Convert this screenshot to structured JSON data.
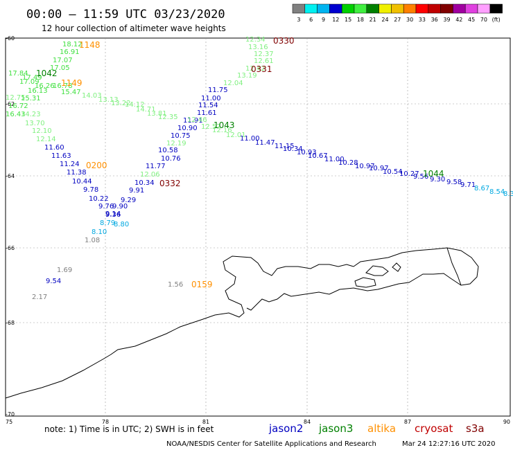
{
  "header": {
    "title": "00:00 – 11:59 UTC 03/23/2020",
    "subtitle": "12 hour collection of altimeter wave heights"
  },
  "legend": {
    "colors": [
      "#808080",
      "#00f0f0",
      "#00b4f0",
      "#0000d0",
      "#00d000",
      "#40f040",
      "#008000",
      "#f0f000",
      "#f0c000",
      "#ff8000",
      "#ff0000",
      "#c00000",
      "#800000",
      "#a000a0",
      "#e040e0",
      "#ffa0ff",
      "#000000"
    ],
    "labels": [
      "3",
      "6",
      "9",
      "12",
      "15",
      "18",
      "21",
      "24",
      "27",
      "30",
      "33",
      "36",
      "39",
      "42",
      "45",
      "70",
      "(ft)"
    ]
  },
  "axes": {
    "lon_ticks": [
      "75",
      "78",
      "81",
      "84",
      "87",
      "90"
    ],
    "lat_ticks": [
      "60",
      "62",
      "64",
      "66",
      "68",
      "70"
    ]
  },
  "points": [
    {
      "t": "18.12",
      "c": "#40e040"
    },
    {
      "t": "16.91",
      "c": "#40e040"
    },
    {
      "t": "17.07",
      "c": "#40e040"
    },
    {
      "t": "17.05",
      "c": "#40e040"
    },
    {
      "t": "17.84",
      "c": "#40e040"
    },
    {
      "t": "17.49",
      "c": "#40e040"
    },
    {
      "t": "17.09",
      "c": "#40e040"
    },
    {
      "t": "16.26",
      "c": "#40e040"
    },
    {
      "t": "16.78",
      "c": "#40e040"
    },
    {
      "t": "16.13",
      "c": "#40e040"
    },
    {
      "t": "15.47",
      "c": "#40e040"
    },
    {
      "t": "15.31",
      "c": "#40e040"
    },
    {
      "t": "14.03",
      "c": "#80f080"
    },
    {
      "t": "13.13",
      "c": "#80f080"
    },
    {
      "t": "12.75",
      "c": "#80f080"
    },
    {
      "t": "13.22",
      "c": "#80f080"
    },
    {
      "t": "16.72",
      "c": "#40e040"
    },
    {
      "t": "14.12",
      "c": "#80f080"
    },
    {
      "t": "14.71",
      "c": "#80f080"
    },
    {
      "t": "16.43",
      "c": "#40e040"
    },
    {
      "t": "14.23",
      "c": "#80f080"
    },
    {
      "t": "13.81",
      "c": "#80f080"
    },
    {
      "t": "12.35",
      "c": "#80f080"
    },
    {
      "t": "13.70",
      "c": "#80f080"
    },
    {
      "t": "12.10",
      "c": "#80f080"
    },
    {
      "t": "12.14",
      "c": "#80f080"
    },
    {
      "t": "11.60",
      "c": "#0000c0"
    },
    {
      "t": "11.63",
      "c": "#0000c0"
    },
    {
      "t": "11.24",
      "c": "#0000c0"
    },
    {
      "t": "11.38",
      "c": "#0000c0"
    },
    {
      "t": "10.44",
      "c": "#0000c0"
    },
    {
      "t": "9.78",
      "c": "#0000c0"
    },
    {
      "t": "10.22",
      "c": "#0000c0"
    },
    {
      "t": "9.76",
      "c": "#0000c0"
    },
    {
      "t": "9.90",
      "c": "#0000c0"
    },
    {
      "t": "9.29",
      "c": "#0000c0"
    },
    {
      "t": "9.91",
      "c": "#0000c0"
    },
    {
      "t": "10.34",
      "c": "#0000c0"
    },
    {
      "t": "9.36",
      "c": "#0000c0"
    },
    {
      "t": "9.14",
      "c": "#0000c0"
    },
    {
      "t": "8.79",
      "c": "#00a8e0"
    },
    {
      "t": "8.80",
      "c": "#00a8e0"
    },
    {
      "t": "8.10",
      "c": "#00a8e0"
    },
    {
      "t": "1.08",
      "c": "#808080"
    },
    {
      "t": "12.34",
      "c": "#80f080"
    },
    {
      "t": "13.16",
      "c": "#80f080"
    },
    {
      "t": "12.37",
      "c": "#80f080"
    },
    {
      "t": "12.61",
      "c": "#80f080"
    },
    {
      "t": "12.42",
      "c": "#80f080"
    },
    {
      "t": "13.19",
      "c": "#80f080"
    },
    {
      "t": "12.04",
      "c": "#80f080"
    },
    {
      "t": "11.75",
      "c": "#0000c0"
    },
    {
      "t": "11.00",
      "c": "#0000c0"
    },
    {
      "t": "11.54",
      "c": "#0000c0"
    },
    {
      "t": "11.61",
      "c": "#0000c0"
    },
    {
      "t": "11.91",
      "c": "#0000c0"
    },
    {
      "t": "10.90",
      "c": "#0000c0"
    },
    {
      "t": "10.75",
      "c": "#0000c0"
    },
    {
      "t": "10.58",
      "c": "#0000c0"
    },
    {
      "t": "10.76",
      "c": "#0000c0"
    },
    {
      "t": "11.77",
      "c": "#0000c0"
    },
    {
      "t": "12.46",
      "c": "#80f080"
    },
    {
      "t": "12.57",
      "c": "#80f080"
    },
    {
      "t": "12.16",
      "c": "#80f080"
    },
    {
      "t": "12.01",
      "c": "#80f080"
    },
    {
      "t": "12.19",
      "c": "#80f080"
    },
    {
      "t": "12.06",
      "c": "#80f080"
    },
    {
      "t": "11.00",
      "c": "#0000c0"
    },
    {
      "t": "11.47",
      "c": "#0000c0"
    },
    {
      "t": "11.15",
      "c": "#0000c0"
    },
    {
      "t": "10.34",
      "c": "#0000c0"
    },
    {
      "t": "10.93",
      "c": "#0000c0"
    },
    {
      "t": "10.67",
      "c": "#0000c0"
    },
    {
      "t": "11.00",
      "c": "#0000c0"
    },
    {
      "t": "10.28",
      "c": "#0000c0"
    },
    {
      "t": "10.97",
      "c": "#0000c0"
    },
    {
      "t": "10.97",
      "c": "#0000c0"
    },
    {
      "t": "10.54",
      "c": "#0000c0"
    },
    {
      "t": "10.27",
      "c": "#0000c0"
    },
    {
      "t": "9.56",
      "c": "#0000c0"
    },
    {
      "t": "9.30",
      "c": "#0000c0"
    },
    {
      "t": "9.58",
      "c": "#0000c0"
    },
    {
      "t": "9.71",
      "c": "#0000c0"
    },
    {
      "t": "8.67",
      "c": "#00a8e0"
    },
    {
      "t": "8.54",
      "c": "#00a8e0"
    },
    {
      "t": "8.3",
      "c": "#00a8e0"
    },
    {
      "t": "1.69",
      "c": "#808080"
    },
    {
      "t": "9.54",
      "c": "#0000c0"
    },
    {
      "t": "2.17",
      "c": "#808080"
    },
    {
      "t": "1.56",
      "c": "#808080"
    }
  ],
  "time_labels": [
    {
      "t": "1148",
      "c": "#ff9000"
    },
    {
      "t": "1042",
      "c": "#008000"
    },
    {
      "t": "1149",
      "c": "#ff9000"
    },
    {
      "t": "0330",
      "c": "#800000"
    },
    {
      "t": "0331",
      "c": "#800000"
    },
    {
      "t": "1043",
      "c": "#008000"
    },
    {
      "t": "0200",
      "c": "#ff9000"
    },
    {
      "t": "0332",
      "c": "#800000"
    },
    {
      "t": "1044",
      "c": "#008000"
    },
    {
      "t": "0159",
      "c": "#ff9000"
    }
  ],
  "footer": {
    "note": "note:  1) Time is in UTC;  2) SWH is in feet",
    "satellites": [
      {
        "name": "jason2",
        "color": "#0000c0"
      },
      {
        "name": "jason3",
        "color": "#008000"
      },
      {
        "name": "altika",
        "color": "#ff9000"
      },
      {
        "name": "cryosat",
        "color": "#c00000"
      },
      {
        "name": "s3a",
        "color": "#800000"
      }
    ],
    "credit": "NOAA/NESDIS Center for Satellite Applications and Research",
    "timestamp": "Mar 24 12:27:16 UTC 2020"
  }
}
